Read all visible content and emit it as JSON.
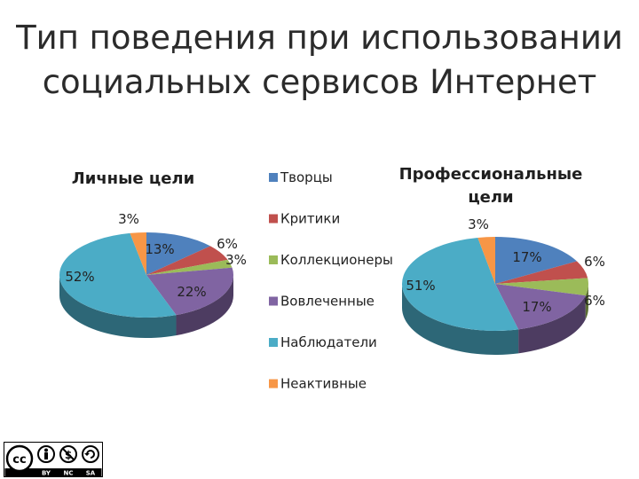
{
  "page": {
    "title_line1": "Тип поведения при использовании",
    "title_line2": "социальных сервисов Интернет"
  },
  "chart_data": [
    {
      "type": "pie",
      "title": "Личные цели",
      "categories": [
        "Творцы",
        "Критики",
        "Коллекционеры",
        "Вовлеченные",
        "Наблюдатели",
        "Неактивные"
      ],
      "values": [
        13,
        6,
        3,
        22,
        52,
        3
      ],
      "labels": [
        "13%",
        "6%",
        "3%",
        "22%",
        "52%",
        "3%"
      ],
      "colors": [
        "#4f81bd",
        "#c0504d",
        "#9bbb59",
        "#8064a2",
        "#4bacc6",
        "#f79646"
      ]
    },
    {
      "type": "pie",
      "title": "Профессиональные цели",
      "title_lines": [
        "Профессиональные",
        "цели"
      ],
      "categories": [
        "Творцы",
        "Критики",
        "Коллекционеры",
        "Вовлеченные",
        "Наблюдатели",
        "Неактивные"
      ],
      "values": [
        17,
        6,
        6,
        17,
        51,
        3
      ],
      "labels": [
        "17%",
        "6%",
        "6%",
        "17%",
        "51%",
        "3%"
      ],
      "colors": [
        "#4f81bd",
        "#c0504d",
        "#9bbb59",
        "#8064a2",
        "#4bacc6",
        "#f79646"
      ]
    }
  ],
  "legend": {
    "items": [
      "Творцы",
      "Критики",
      "Коллекционеры",
      "Вовлеченные",
      "Наблюдатели",
      "Неактивные"
    ],
    "colors": [
      "#4f81bd",
      "#c0504d",
      "#9bbb59",
      "#8064a2",
      "#4bacc6",
      "#f79646"
    ]
  },
  "license_badge": {
    "main": "cc",
    "terms": [
      "BY",
      "NC",
      "SA"
    ]
  }
}
